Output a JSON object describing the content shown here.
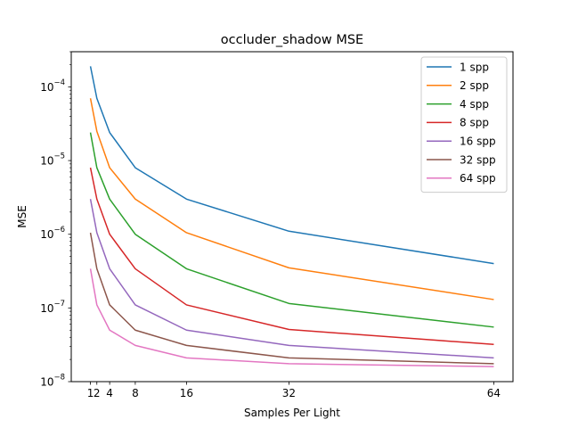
{
  "chart_data": {
    "type": "line",
    "title": "occluder_shadow MSE",
    "xlabel": "Samples Per Light",
    "ylabel": "MSE",
    "yscale": "log",
    "xlim": [
      -2,
      67
    ],
    "ylim": [
      1e-08,
      0.0003
    ],
    "x_ticks": [
      {
        "value": 1,
        "label": "1"
      },
      {
        "value": 2,
        "label": "2"
      },
      {
        "value": 4,
        "label": "4"
      },
      {
        "value": 8,
        "label": "8"
      },
      {
        "value": 16,
        "label": "16"
      },
      {
        "value": 32,
        "label": "32"
      },
      {
        "value": 64,
        "label": "64"
      }
    ],
    "y_ticks": [
      {
        "value": 1e-08,
        "base": "10",
        "exp": "−8"
      },
      {
        "value": 1e-07,
        "base": "10",
        "exp": "−7"
      },
      {
        "value": 1e-06,
        "base": "10",
        "exp": "−6"
      },
      {
        "value": 1e-05,
        "base": "10",
        "exp": "−5"
      },
      {
        "value": 0.0001,
        "base": "10",
        "exp": "−4"
      }
    ],
    "grid": false,
    "legend_position": "top-right",
    "x": [
      1,
      2,
      4,
      8,
      16,
      32,
      64
    ],
    "series": [
      {
        "name": "1 spp",
        "color": "#1f77b4",
        "values": [
          0.00019,
          7e-05,
          2.4e-05,
          8e-06,
          3e-06,
          1.1e-06,
          4e-07
        ]
      },
      {
        "name": "2 spp",
        "color": "#ff7f0e",
        "values": [
          7e-05,
          2.5e-05,
          8e-06,
          3e-06,
          1.05e-06,
          3.5e-07,
          1.3e-07
        ]
      },
      {
        "name": "4 spp",
        "color": "#2ca02c",
        "values": [
          2.4e-05,
          8e-06,
          3e-06,
          1e-06,
          3.4e-07,
          1.15e-07,
          5.5e-08
        ]
      },
      {
        "name": "8 spp",
        "color": "#d62728",
        "values": [
          8e-06,
          3e-06,
          1e-06,
          3.4e-07,
          1.1e-07,
          5.1e-08,
          3.2e-08
        ]
      },
      {
        "name": "16 spp",
        "color": "#9467bd",
        "values": [
          3e-06,
          1.05e-06,
          3.4e-07,
          1.1e-07,
          5e-08,
          3.1e-08,
          2.1e-08
        ]
      },
      {
        "name": "32 spp",
        "color": "#8c564b",
        "values": [
          1.05e-06,
          3.4e-07,
          1.1e-07,
          5e-08,
          3.1e-08,
          2.1e-08,
          1.75e-08
        ]
      },
      {
        "name": "64 spp",
        "color": "#e377c2",
        "values": [
          3.4e-07,
          1.1e-07,
          5e-08,
          3.1e-08,
          2.1e-08,
          1.75e-08,
          1.6e-08
        ]
      }
    ]
  }
}
